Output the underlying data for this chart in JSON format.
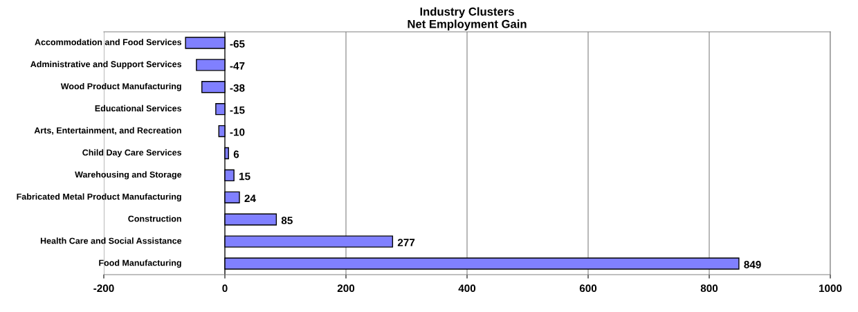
{
  "chart_data": {
    "type": "bar",
    "orientation": "horizontal",
    "title": "Industry Clusters\nNet Employment Gain",
    "categories": [
      "Accommodation and Food Services",
      "Administrative and Support Services",
      "Wood Product Manufacturing",
      "Educational Services",
      "Arts, Entertainment, and Recreation",
      "Child Day Care Services",
      "Warehousing and Storage",
      "Fabricated Metal Product Manufacturing",
      "Construction",
      "Health Care and Social Assistance",
      "Food Manufacturing"
    ],
    "values": [
      -65,
      -47,
      -38,
      -15,
      -10,
      6,
      15,
      24,
      85,
      277,
      849
    ],
    "color": "#8080ff",
    "xlim": [
      -200,
      1000
    ],
    "xticks": [
      -200,
      0,
      200,
      400,
      600,
      800,
      1000
    ],
    "grid": "x",
    "data_labels": true,
    "legend": false
  }
}
